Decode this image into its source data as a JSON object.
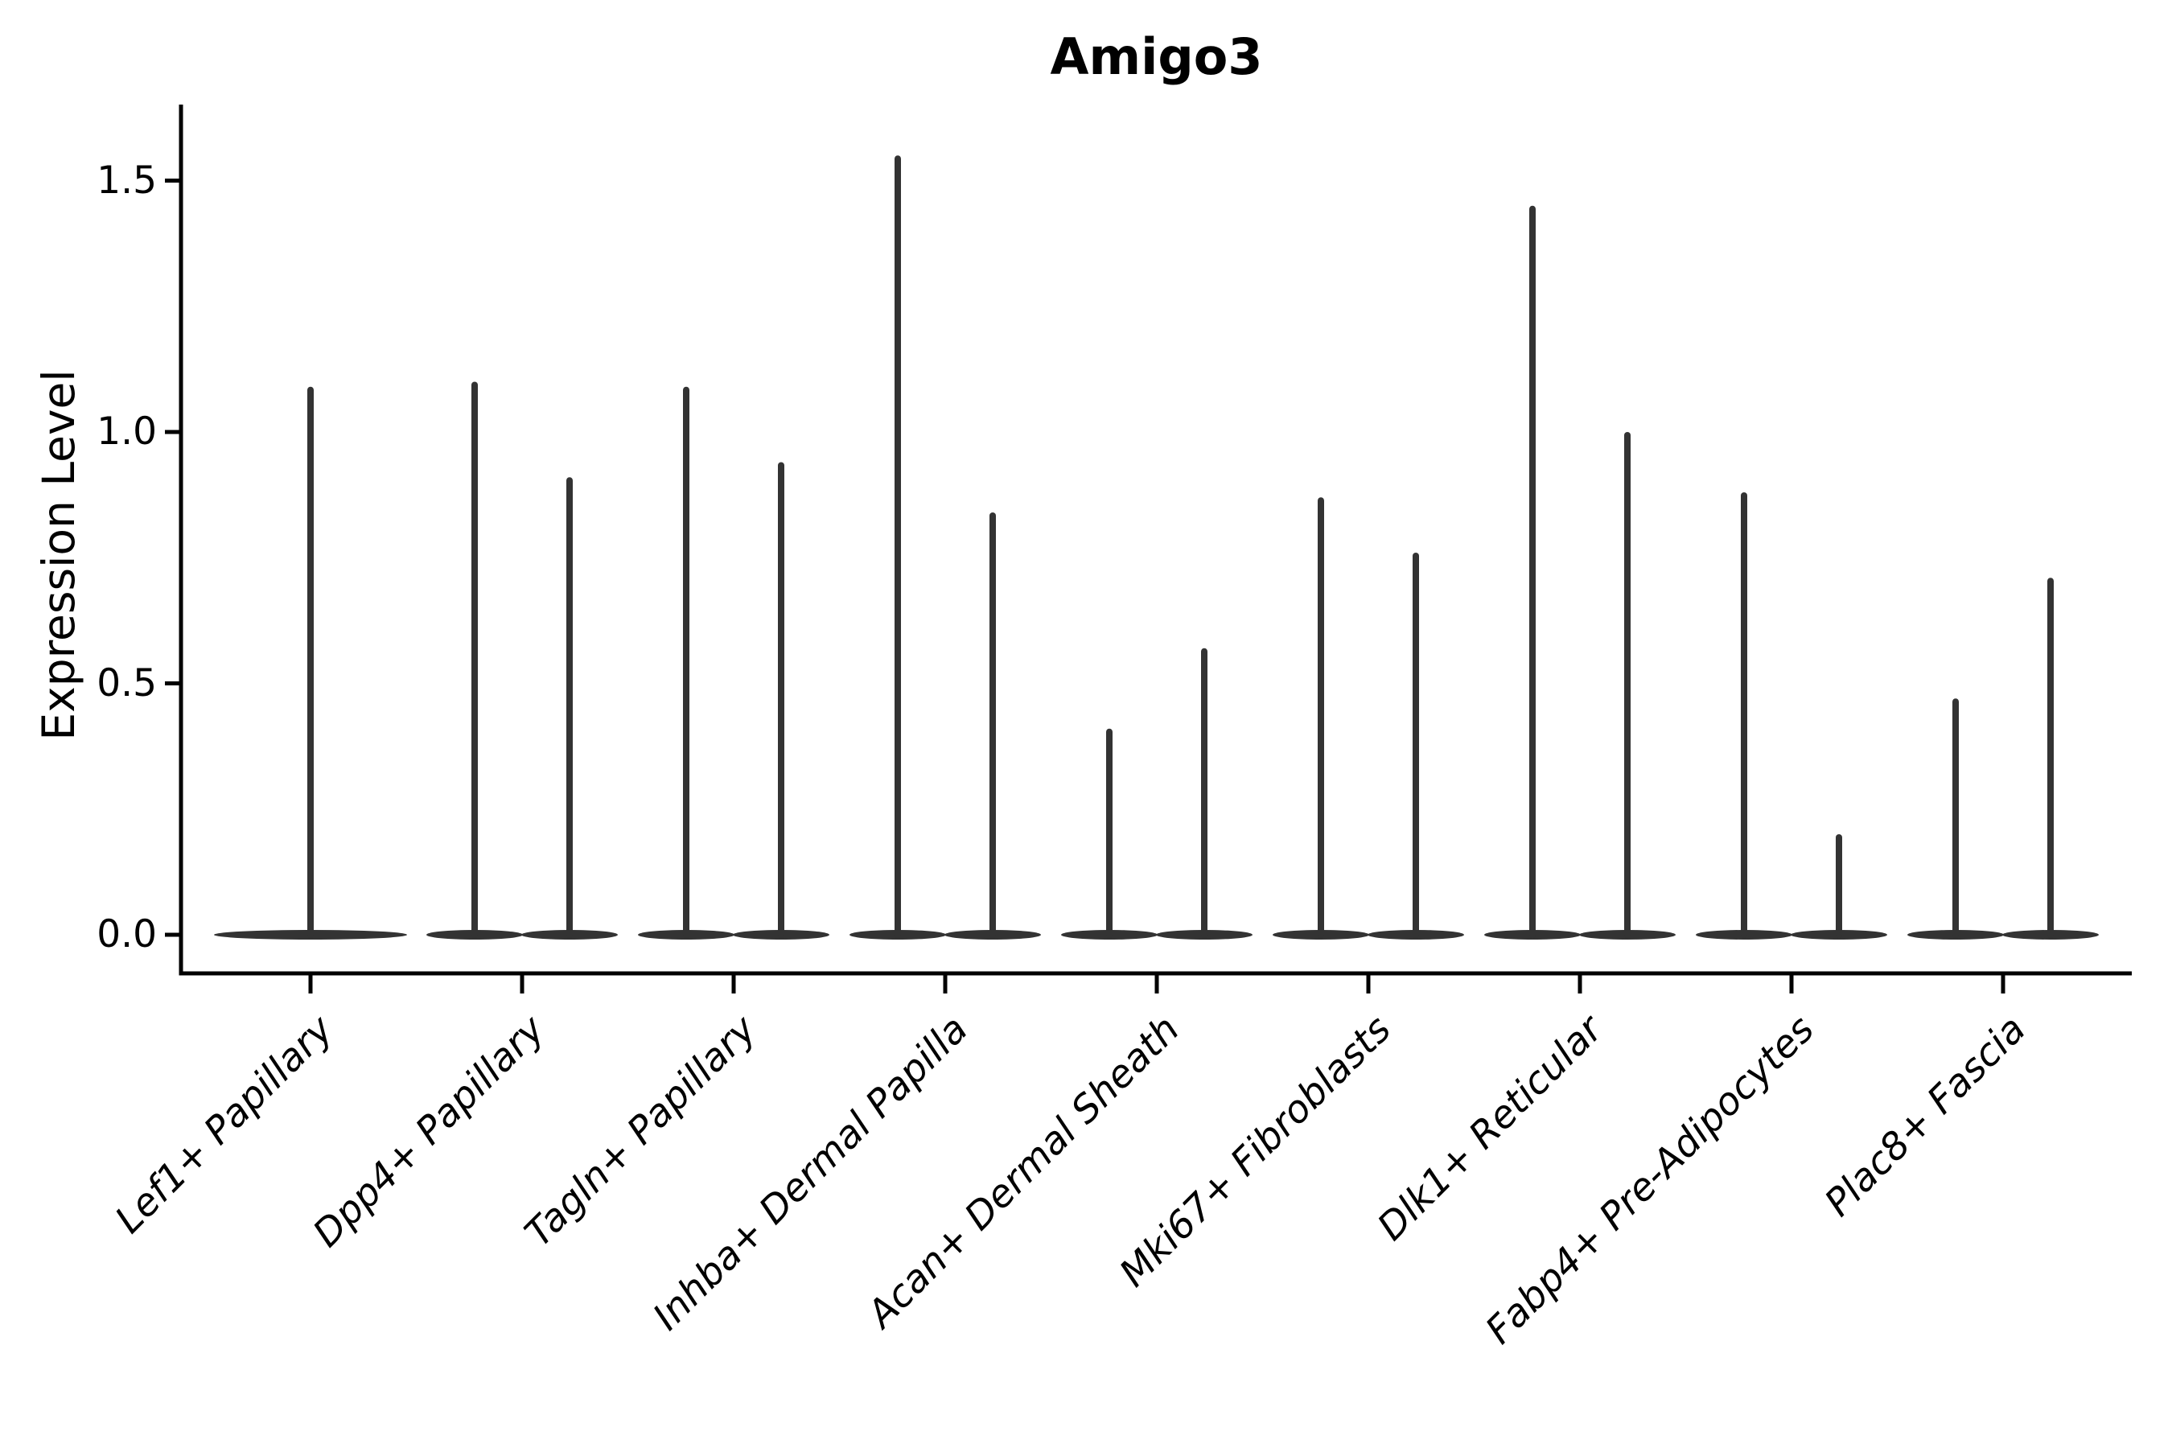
{
  "chart_data": {
    "type": "violin",
    "title": "Amigo3",
    "ylabel": "Expression Level",
    "xlabel": "",
    "yticks": [
      0.0,
      0.5,
      1.0,
      1.5
    ],
    "ytick_labels": [
      "0.0",
      "0.5",
      "1.0",
      "1.5"
    ],
    "ylim": [
      -0.08,
      1.65
    ],
    "grid": false,
    "legend": false,
    "violin_color": "#333333",
    "axis_color": "#000000",
    "categories": [
      {
        "label": "Lef1+ Papillary",
        "violin_max": [
          1.09
        ]
      },
      {
        "label": "Dpp4+ Papillary",
        "violin_max": [
          1.1,
          0.91
        ]
      },
      {
        "label": "Tagln+ Papillary",
        "violin_max": [
          1.09,
          0.94
        ]
      },
      {
        "label": "Inhba+ Dermal Papilla",
        "violin_max": [
          1.55,
          0.84
        ]
      },
      {
        "label": "Acan+ Dermal Sheath",
        "violin_max": [
          0.41,
          0.57
        ]
      },
      {
        "label": "Mki67+ Fibroblasts",
        "violin_max": [
          0.87,
          0.76
        ]
      },
      {
        "label": "Dlk1+ Reticular",
        "violin_max": [
          1.45,
          1.0
        ]
      },
      {
        "label": "Fabp4+ Pre-Adipocytes",
        "violin_max": [
          0.88,
          0.2
        ]
      },
      {
        "label": "Plac8+ Fascia",
        "violin_max": [
          0.47,
          0.71
        ]
      }
    ]
  }
}
